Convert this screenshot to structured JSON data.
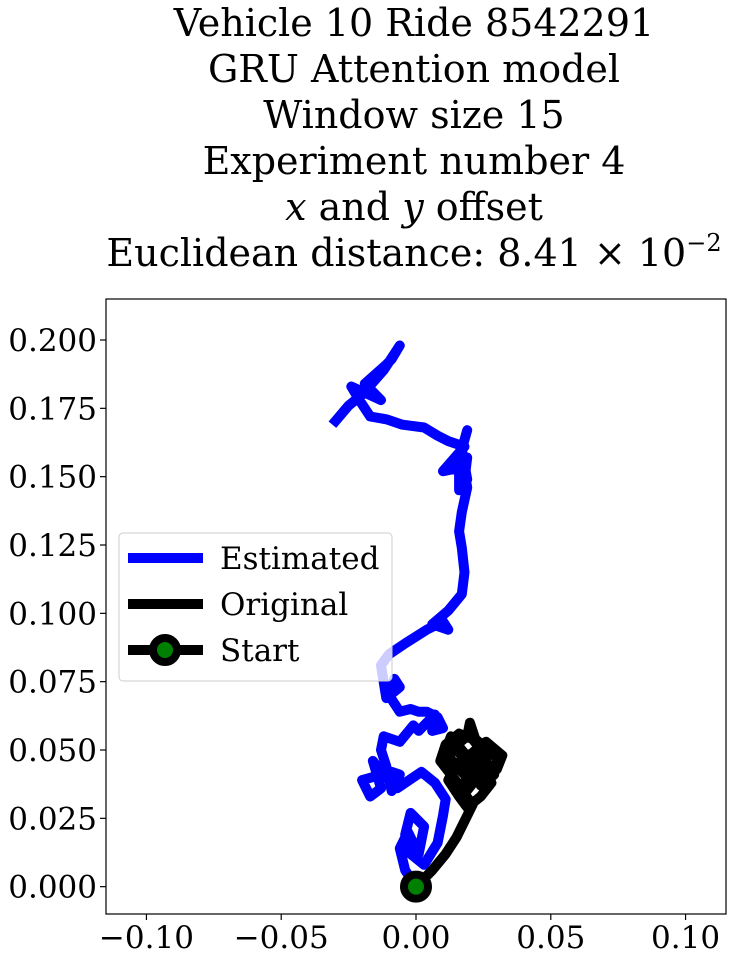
{
  "chart_data": {
    "type": "line",
    "title_lines": {
      "vehicle_line": "Vehicle 10 Ride 8542291",
      "model_line": "GRU Attention model",
      "window_line": "Window size 15",
      "experiment_line": "Experiment number 4",
      "offset_x": "x",
      "offset_and": " and ",
      "offset_y": "y",
      "offset_rest": " offset",
      "distance_prefix": "Euclidean distance: 8.41",
      "distance_times": " × 10",
      "distance_exp": "−2"
    },
    "xlim": [
      -0.115,
      0.115
    ],
    "ylim": [
      -0.01,
      0.215
    ],
    "xticks": [
      -0.1,
      -0.05,
      0.0,
      0.05,
      0.1
    ],
    "xtick_labels": [
      "−0.10",
      "−0.05",
      "0.00",
      "0.05",
      "0.10"
    ],
    "yticks": [
      0.0,
      0.025,
      0.05,
      0.075,
      0.1,
      0.125,
      0.15,
      0.175,
      0.2
    ],
    "ytick_labels": [
      "0.000",
      "0.025",
      "0.050",
      "0.075",
      "0.100",
      "0.125",
      "0.150",
      "0.175",
      "0.200"
    ],
    "grid": false,
    "legend_placement": "center-left",
    "legend": [
      {
        "label": "Estimated",
        "color": "#0000ff"
      },
      {
        "label": "Original",
        "color": "#000000"
      },
      {
        "label": "Start",
        "color": "#000000",
        "marker_color": "#008000"
      }
    ],
    "series": [
      {
        "name": "Estimated",
        "color": "#0000ff",
        "points": [
          [
            0.0,
            0.0
          ],
          [
            -0.004,
            0.006
          ],
          [
            -0.006,
            0.014
          ],
          [
            -0.003,
            0.02
          ],
          [
            0.001,
            0.012
          ],
          [
            0.003,
            0.022
          ],
          [
            -0.002,
            0.027
          ],
          [
            -0.004,
            0.019
          ],
          [
            -0.002,
            0.012
          ],
          [
            0.003,
            0.008
          ],
          [
            0.008,
            0.016
          ],
          [
            0.01,
            0.026
          ],
          [
            0.011,
            0.032
          ],
          [
            0.007,
            0.038
          ],
          [
            0.002,
            0.042
          ],
          [
            -0.007,
            0.036
          ],
          [
            -0.013,
            0.042
          ],
          [
            -0.016,
            0.046
          ],
          [
            -0.013,
            0.036
          ],
          [
            -0.017,
            0.033
          ],
          [
            -0.02,
            0.039
          ],
          [
            -0.009,
            0.042
          ],
          [
            -0.006,
            0.041
          ],
          [
            -0.009,
            0.035
          ],
          [
            -0.011,
            0.044
          ],
          [
            -0.013,
            0.05
          ],
          [
            -0.012,
            0.055
          ],
          [
            -0.006,
            0.053
          ],
          [
            -0.001,
            0.059
          ],
          [
            0.001,
            0.057
          ],
          [
            0.007,
            0.063
          ],
          [
            0.006,
            0.057
          ],
          [
            0.01,
            0.058
          ],
          [
            0.008,
            0.062
          ],
          [
            0.004,
            0.064
          ],
          [
            0.001,
            0.064
          ],
          [
            -0.002,
            0.065
          ],
          [
            -0.006,
            0.064
          ],
          [
            -0.01,
            0.07
          ],
          [
            -0.008,
            0.076
          ],
          [
            -0.006,
            0.073
          ],
          [
            -0.011,
            0.069
          ],
          [
            -0.013,
            0.081
          ],
          [
            -0.01,
            0.085
          ],
          [
            -0.004,
            0.089
          ],
          [
            0.004,
            0.094
          ],
          [
            0.01,
            0.097
          ],
          [
            0.012,
            0.094
          ],
          [
            0.006,
            0.096
          ],
          [
            0.012,
            0.101
          ],
          [
            0.017,
            0.107
          ],
          [
            0.018,
            0.115
          ],
          [
            0.017,
            0.124
          ],
          [
            0.016,
            0.13
          ],
          [
            0.017,
            0.137
          ],
          [
            0.019,
            0.146
          ],
          [
            0.018,
            0.152
          ],
          [
            0.019,
            0.157
          ],
          [
            0.018,
            0.149
          ],
          [
            0.016,
            0.158
          ],
          [
            0.016,
            0.145
          ],
          [
            0.019,
            0.149
          ],
          [
            0.017,
            0.16
          ],
          [
            0.019,
            0.167
          ],
          [
            0.015,
            0.153
          ],
          [
            0.01,
            0.152
          ],
          [
            0.018,
            0.161
          ],
          [
            0.012,
            0.163
          ],
          [
            0.008,
            0.165
          ],
          [
            0.003,
            0.168
          ],
          [
            -0.005,
            0.169
          ],
          [
            -0.011,
            0.171
          ],
          [
            -0.017,
            0.172
          ],
          [
            -0.021,
            0.178
          ],
          [
            -0.024,
            0.183
          ],
          [
            -0.013,
            0.178
          ],
          [
            -0.019,
            0.184
          ],
          [
            -0.011,
            0.191
          ],
          [
            -0.009,
            0.193
          ],
          [
            -0.006,
            0.198
          ],
          [
            -0.012,
            0.189
          ],
          [
            -0.02,
            0.18
          ],
          [
            -0.025,
            0.176
          ],
          [
            -0.031,
            0.169
          ]
        ]
      },
      {
        "name": "Original",
        "color": "#000000",
        "points": [
          [
            0.0,
            0.0
          ],
          [
            0.006,
            0.006
          ],
          [
            0.011,
            0.012
          ],
          [
            0.015,
            0.018
          ],
          [
            0.018,
            0.024
          ],
          [
            0.021,
            0.03
          ],
          [
            0.018,
            0.034
          ],
          [
            0.022,
            0.039
          ],
          [
            0.019,
            0.045
          ],
          [
            0.023,
            0.05
          ],
          [
            0.026,
            0.046
          ],
          [
            0.029,
            0.041
          ],
          [
            0.024,
            0.037
          ],
          [
            0.03,
            0.043
          ],
          [
            0.032,
            0.048
          ],
          [
            0.026,
            0.053
          ],
          [
            0.021,
            0.049
          ],
          [
            0.015,
            0.045
          ],
          [
            0.012,
            0.039
          ],
          [
            0.016,
            0.033
          ],
          [
            0.019,
            0.029
          ],
          [
            0.024,
            0.033
          ],
          [
            0.028,
            0.038
          ],
          [
            0.022,
            0.044
          ],
          [
            0.017,
            0.05
          ],
          [
            0.013,
            0.055
          ],
          [
            0.011,
            0.05
          ],
          [
            0.014,
            0.045
          ],
          [
            0.019,
            0.04
          ],
          [
            0.017,
            0.036
          ],
          [
            0.013,
            0.041
          ],
          [
            0.009,
            0.046
          ],
          [
            0.011,
            0.052
          ],
          [
            0.016,
            0.056
          ],
          [
            0.021,
            0.054
          ],
          [
            0.025,
            0.049
          ],
          [
            0.023,
            0.043
          ],
          [
            0.018,
            0.047
          ],
          [
            0.014,
            0.051
          ],
          [
            0.019,
            0.055
          ],
          [
            0.02,
            0.06
          ],
          [
            0.022,
            0.054
          ],
          [
            0.027,
            0.05
          ],
          [
            0.031,
            0.046
          ],
          [
            0.026,
            0.042
          ],
          [
            0.02,
            0.038
          ]
        ]
      }
    ],
    "start_point": [
      0.0,
      0.0
    ]
  }
}
